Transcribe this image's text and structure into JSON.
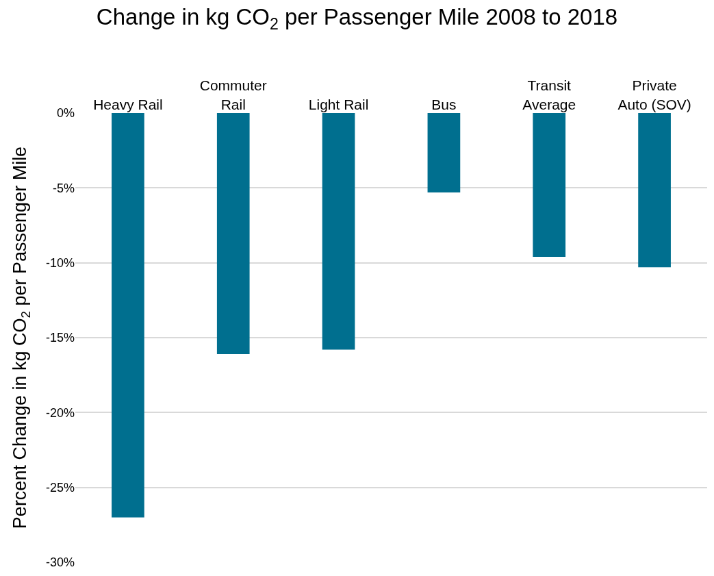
{
  "chart_data": {
    "type": "bar",
    "title": "Change in kg CO$_{2}$ per Passenger Mile 2008 to 2018",
    "ylabel": "Percent Change in kg CO$_{2}$ per Passenger Mile",
    "categories": [
      "Heavy Rail",
      "Commuter Rail",
      "Light Rail",
      "Bus",
      "Transit Average",
      "Private Auto (SOV)"
    ],
    "values": [
      -27.0,
      -16.1,
      -15.8,
      -5.3,
      -9.6,
      -10.3
    ],
    "color": "#006f8f",
    "ylim": [
      -30,
      0
    ],
    "yticks": [
      {
        "value": 0,
        "label": "0%"
      },
      {
        "value": -5,
        "label": "-5%"
      },
      {
        "value": -10,
        "label": "-10%"
      },
      {
        "value": -15,
        "label": "-15%"
      },
      {
        "value": -20,
        "label": "-20%"
      },
      {
        "value": -25,
        "label": "-25%"
      },
      {
        "value": -30,
        "label": "-30%"
      }
    ],
    "grid": "y"
  }
}
